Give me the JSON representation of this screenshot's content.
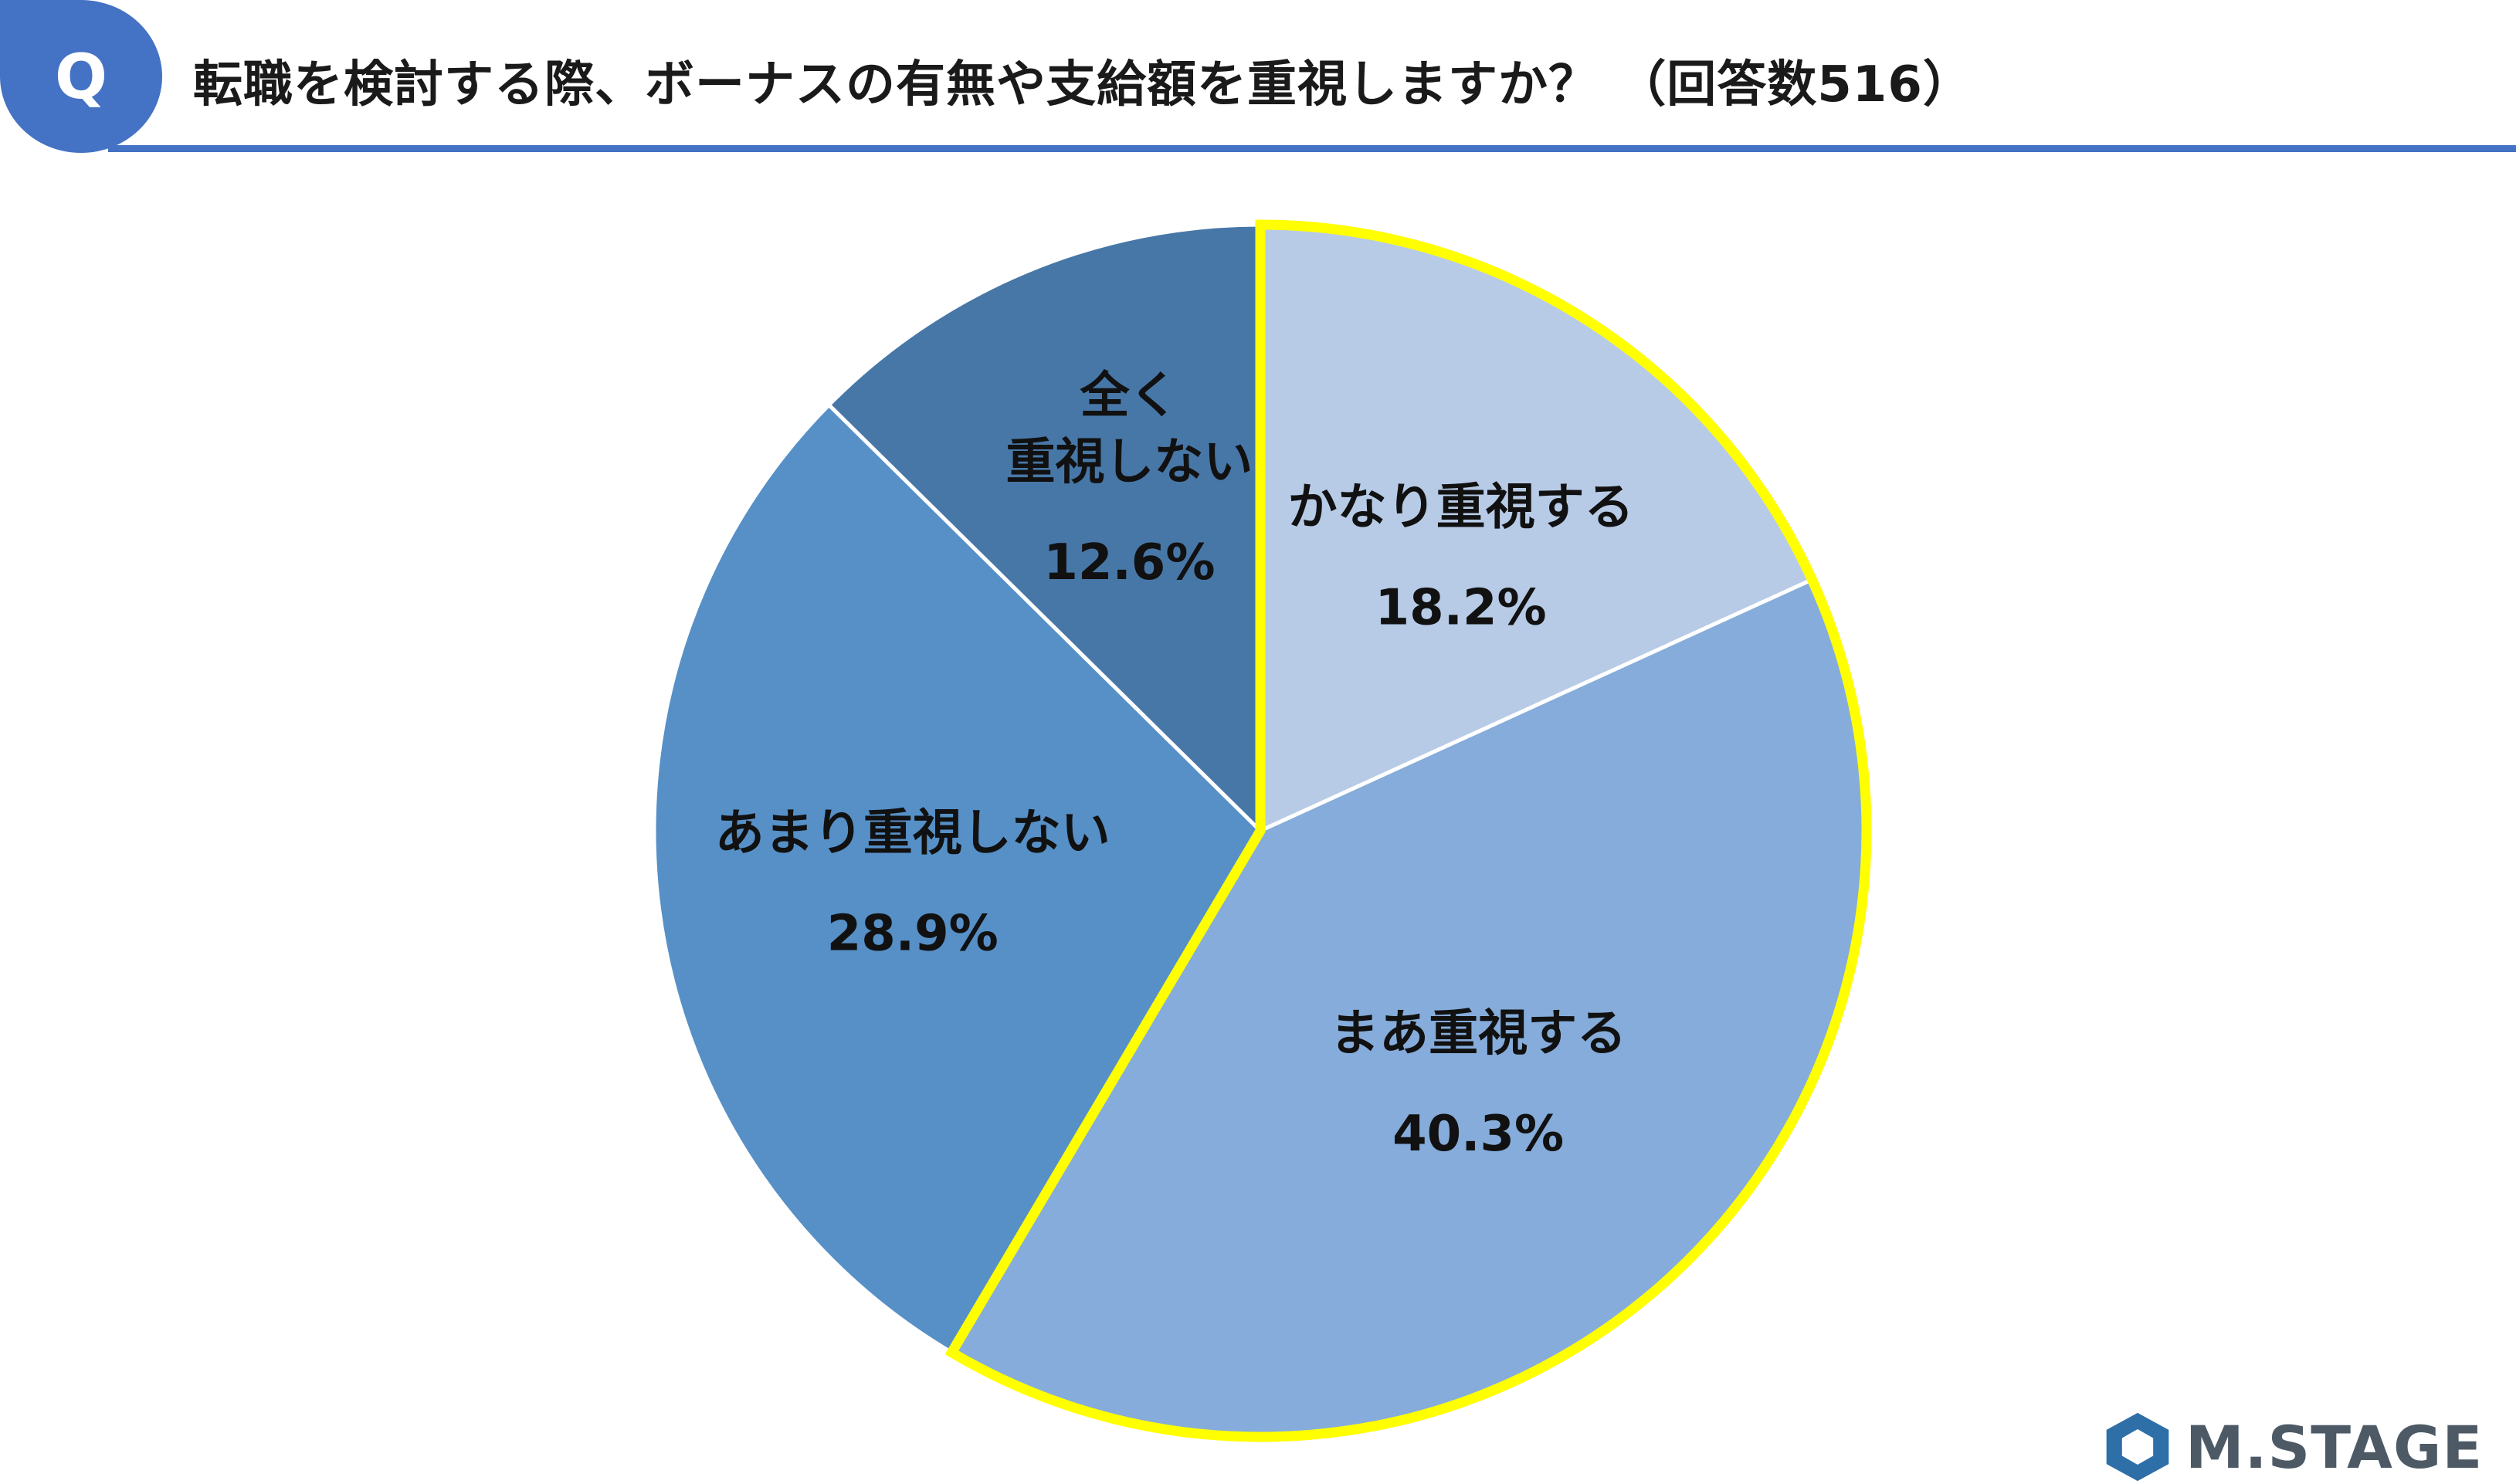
{
  "badge": {
    "label": "Q"
  },
  "title": "転職を検討する際、ボーナスの有無や支給額を重視しますか？ （回答数516）",
  "chart_data": {
    "type": "pie",
    "start": "12 o'clock, clockwise",
    "slices": [
      {
        "label": [
          "かなり重視する"
        ],
        "value": 18.2,
        "value_text": "18.2%",
        "color": "#b7cbe7",
        "highlight": true
      },
      {
        "label": [
          "まあ重視する"
        ],
        "value": 40.3,
        "value_text": "40.3%",
        "color": "#85acda",
        "highlight": true
      },
      {
        "label": [
          "あまり重視しない"
        ],
        "value": 28.9,
        "value_text": "28.9%",
        "color": "#5690c7",
        "highlight": false
      },
      {
        "label": [
          "全く",
          "重視しない"
        ],
        "value": 12.6,
        "value_text": "12.6%",
        "color": "#4777a7",
        "highlight": false
      }
    ],
    "highlight_color": "#ffff00"
  },
  "logo": {
    "text": "M.STAGE",
    "mark_color": "#2f6fa8"
  },
  "colors": {
    "accent": "#4472c4"
  }
}
